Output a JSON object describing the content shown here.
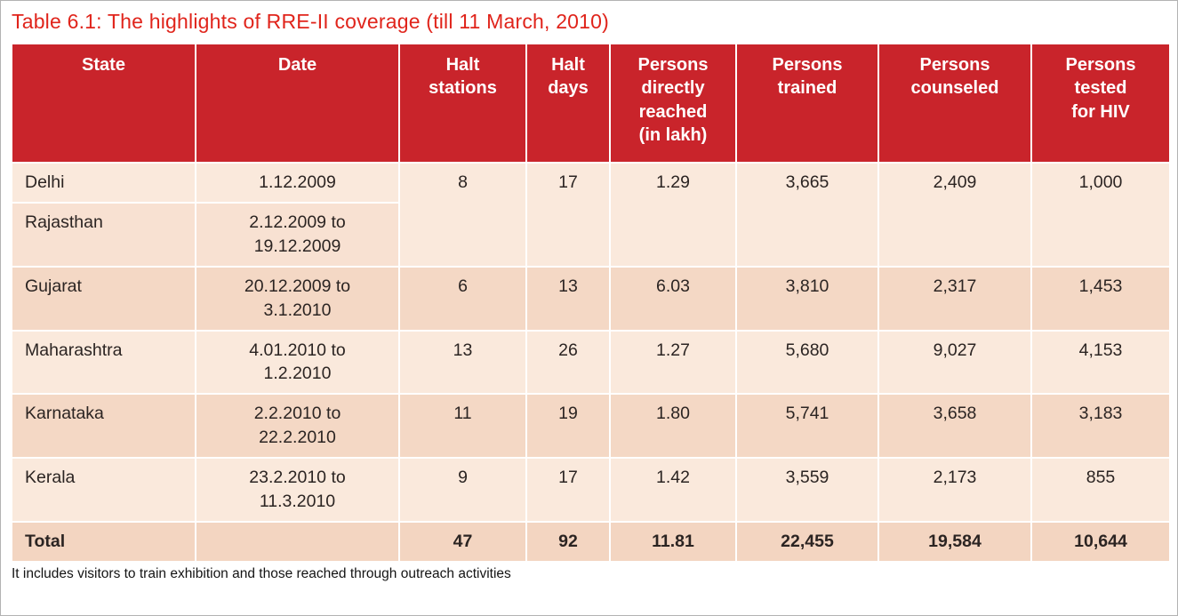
{
  "title": "Table 6.1: The highlights of RRE-II coverage (till 11 March, 2010)",
  "colors": {
    "title_color": "#e0241b",
    "header_bg": "#c9242b",
    "header_text": "#ffffff",
    "body_text": "#2b2422",
    "row_light": "#fae9dc",
    "row_dark": "#f4d8c5",
    "total_bg": "#f3d5c1"
  },
  "table": {
    "headers": [
      "State",
      "Date",
      "Halt\nstations",
      "Halt\ndays",
      "Persons\ndirectly\nreached\n(in lakh)",
      "Persons\ntrained",
      "Persons\ncounseled",
      "Persons\ntested\nfor HIV"
    ],
    "rows": [
      {
        "state": "Delhi",
        "date": "1.12.2009",
        "values": [
          "8",
          "17",
          "1.29",
          "3,665",
          "2,409",
          "1,000"
        ],
        "rowspan": 2,
        "bg": "#fae9dc"
      },
      {
        "state": "Rajasthan",
        "date": "2.12.2009 to\n19.12.2009",
        "values": null,
        "bg": "#f8e1d2"
      },
      {
        "state": "Gujarat",
        "date": "20.12.2009 to\n3.1.2010",
        "values": [
          "6",
          "13",
          "6.03",
          "3,810",
          "2,317",
          "1,453"
        ],
        "bg": "#f4d8c5"
      },
      {
        "state": "Maharashtra",
        "date": "4.01.2010 to\n1.2.2010",
        "values": [
          "13",
          "26",
          "1.27",
          "5,680",
          "9,027",
          "4,153"
        ],
        "bg": "#fae9dc"
      },
      {
        "state": "Karnataka",
        "date": "2.2.2010 to\n22.2.2010",
        "values": [
          "11",
          "19",
          "1.80",
          "5,741",
          "3,658",
          "3,183"
        ],
        "bg": "#f4d8c5"
      },
      {
        "state": "Kerala",
        "date": "23.2.2010 to\n11.3.2010",
        "values": [
          "9",
          "17",
          "1.42",
          "3,559",
          "2,173",
          "855"
        ],
        "bg": "#fae9dc"
      }
    ],
    "total": {
      "label": "Total",
      "date": "",
      "values": [
        "47",
        "92",
        "11.81",
        "22,455",
        "19,584",
        "10,644"
      ],
      "bg": "#f3d5c1"
    }
  },
  "footnote": "It includes visitors to train exhibition and those reached through outreach activities"
}
